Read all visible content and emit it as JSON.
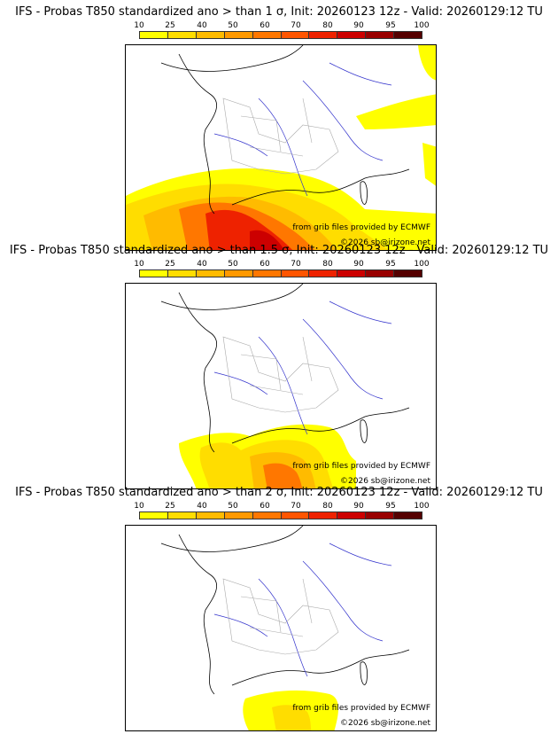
{
  "panels": [
    {
      "title": "IFS - Probas T850  standardized ano > than 1 σ, Init: 20260123 12z - Valid: 20260129:12 TU"
    },
    {
      "title": "IFS - Probas T850  standardized ano > than 1.5 σ, Init: 20260123 12z - Valid: 20260129:12 TU"
    },
    {
      "title": "IFS - Probas T850  standardized ano > than 2 σ, Init: 20260123 12z - Valid: 20260129:12 TU"
    }
  ],
  "scale": {
    "labels": [
      "10",
      "25",
      "40",
      "50",
      "60",
      "70",
      "80",
      "90",
      "95",
      "100"
    ],
    "colors": [
      "#ffff00",
      "#ffdd00",
      "#ffbb00",
      "#ff9900",
      "#ff7700",
      "#ff5500",
      "#ee2200",
      "#cc0000",
      "#990000",
      "#550000"
    ]
  },
  "credits": {
    "source": "from grib files provided by ECMWF",
    "copyright": "©2026 sb@irizone.net"
  },
  "colors": {
    "border": "#333333",
    "coast": "#000000",
    "rivers": "#3333cc",
    "admin": "#aaaaaa"
  }
}
